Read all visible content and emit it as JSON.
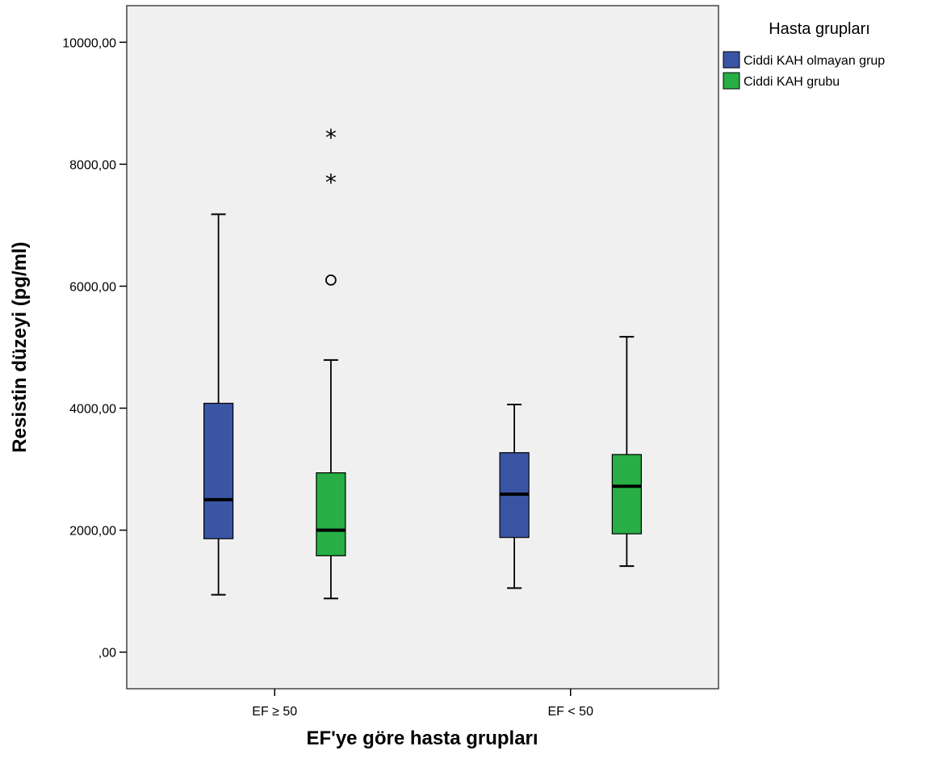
{
  "chart_data": {
    "type": "boxplot",
    "xlabel": "EF'ye göre hasta grupları",
    "ylabel": "Resistin düzeyi (pg/ml)",
    "ylim": [
      -600,
      10600
    ],
    "yticks": [
      0,
      2000,
      4000,
      6000,
      8000,
      10000
    ],
    "ytick_labels": [
      ",00",
      "2000,00",
      "4000,00",
      "6000,00",
      "8000,00",
      "10000,00"
    ],
    "categories": [
      "EF ≥ 50",
      "EF < 50"
    ],
    "grid": false,
    "legend": {
      "title": "Hasta grupları",
      "position": "top-right"
    },
    "series": [
      {
        "name": "Ciddi KAH olmayan grup",
        "color": "#3B55A5",
        "boxes": [
          {
            "min": 940,
            "q1": 1860,
            "median": 2500,
            "q3": 4080,
            "max": 7180,
            "outliers": [],
            "extremes": []
          },
          {
            "min": 1050,
            "q1": 1880,
            "median": 2590,
            "q3": 3270,
            "max": 4060,
            "outliers": [],
            "extremes": []
          }
        ]
      },
      {
        "name": "Ciddi KAH grubu",
        "color": "#27AE44",
        "boxes": [
          {
            "min": 880,
            "q1": 1580,
            "median": 2000,
            "q3": 2940,
            "max": 4790,
            "outliers": [
              6100
            ],
            "extremes": [
              7750,
              8480
            ]
          },
          {
            "min": 1410,
            "q1": 1940,
            "median": 2720,
            "q3": 3240,
            "max": 5170,
            "outliers": [],
            "extremes": []
          }
        ]
      }
    ]
  }
}
